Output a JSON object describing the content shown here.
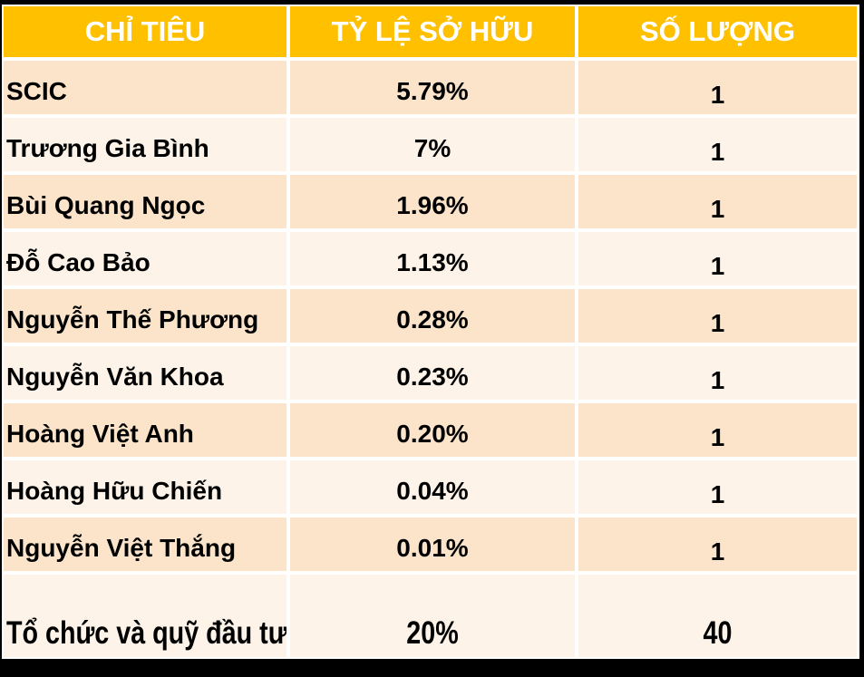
{
  "chart_data": {
    "type": "table",
    "title": "Cơ cấu sở hữu (ownership table)",
    "columns": [
      "CHỈ TIÊU",
      "TỶ LỆ SỞ HỮU",
      "SỐ LƯỢNG"
    ],
    "rows": [
      [
        "SCIC",
        "5.79%",
        "1"
      ],
      [
        "Trương Gia Bình",
        "7%",
        "1"
      ],
      [
        "Bùi Quang Ngọc",
        "1.96%",
        "1"
      ],
      [
        "Đỗ Cao Bảo",
        "1.13%",
        "1"
      ],
      [
        "Nguyễn Thế Phương",
        "0.28%",
        "1"
      ],
      [
        "Nguyễn Văn Khoa",
        "0.23%",
        "1"
      ],
      [
        "Hoàng Việt Anh",
        "0.20%",
        "1"
      ],
      [
        "Hoàng Hữu Chiến",
        "0.04%",
        "1"
      ],
      [
        "Nguyễn Việt Thắng",
        "0.01%",
        "1"
      ],
      [
        "Tổ chức và quỹ đầu tư",
        "20%",
        "40"
      ]
    ],
    "layout": {
      "banded_rows": true,
      "header_position": "top",
      "value_columns_alignment": "center",
      "name_column_alignment": "left"
    }
  },
  "colors": {
    "header_bg": "#FFC000",
    "header_text": "#FFFFFF",
    "band_dark": "#FCE4CA",
    "band_light": "#FDF3E8",
    "body_text": "#000000",
    "grid_lines": "#FFFFFF",
    "frame": "#000000"
  }
}
